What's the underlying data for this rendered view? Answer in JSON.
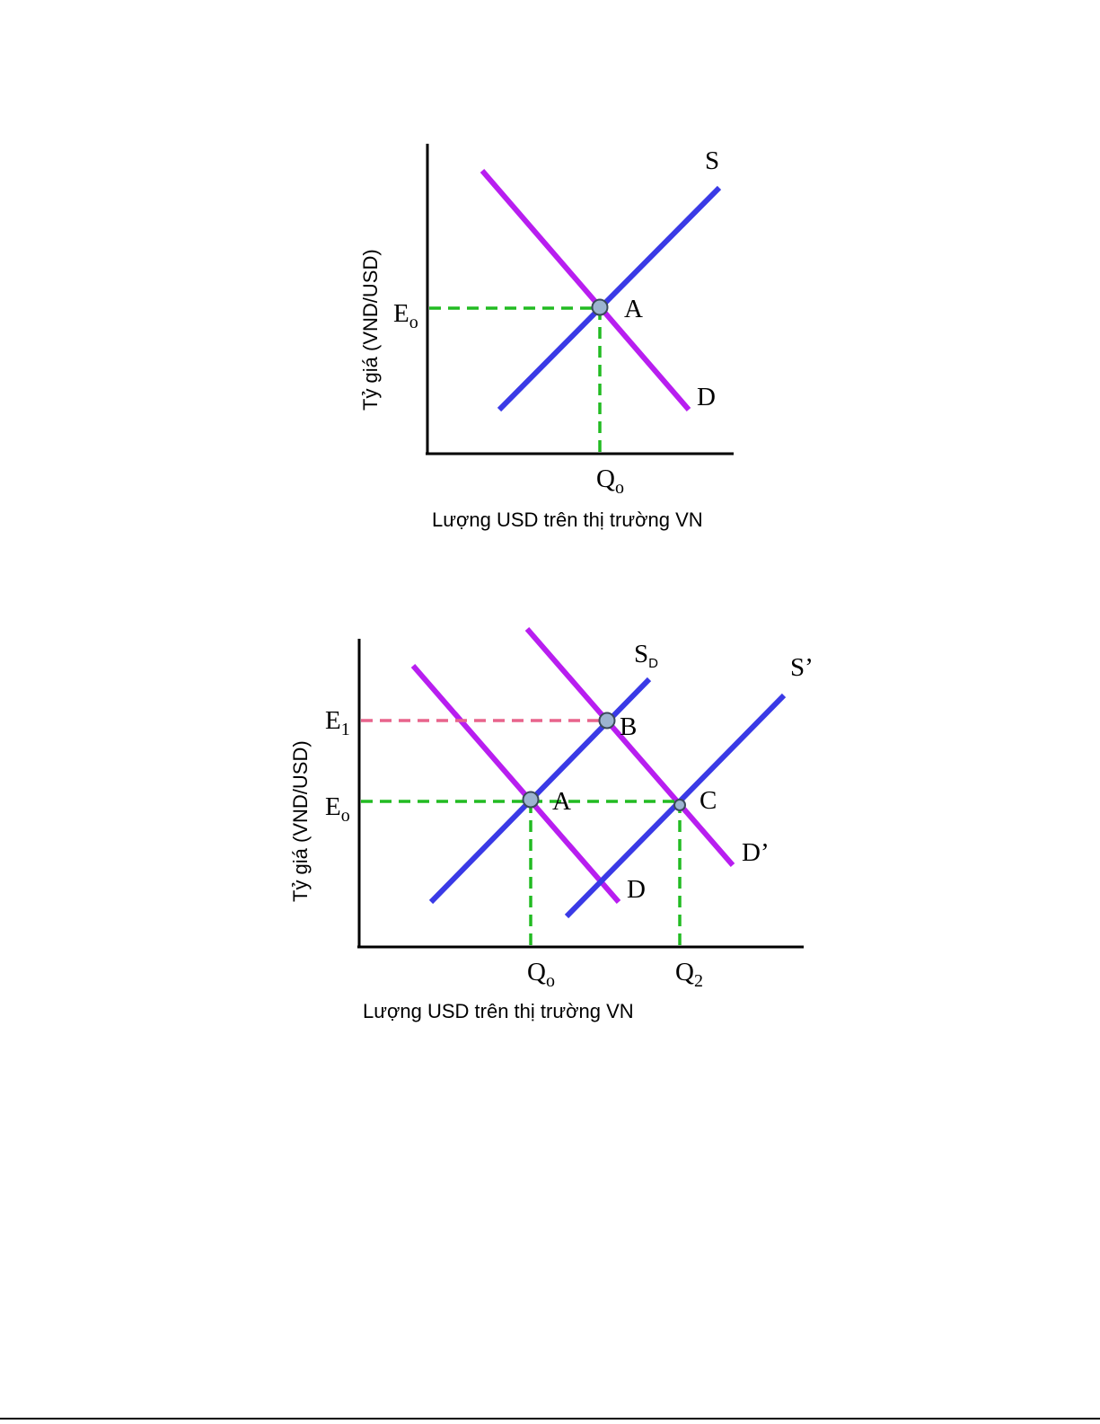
{
  "colors": {
    "supply": "#3a3ae6",
    "demand": "#b81ef0",
    "guide_green": "#22bb22",
    "guide_pink": "#e8648c",
    "point_fill": "#9cb4d0",
    "point_stroke": "#3a4a5a",
    "axis": "#000000"
  },
  "diagram1": {
    "y_axis_title": "Tỷ giá (VND/USD)",
    "x_axis_title": "Lượng USD trên thị trường VN",
    "label_S": "S",
    "label_D": "D",
    "label_A": "A",
    "label_E": "E",
    "label_E_sub": "o",
    "label_Q": "Q",
    "label_Q_sub": "o"
  },
  "diagram2": {
    "y_axis_title": "Tỷ giá (VND/USD)",
    "x_axis_title": "Lượng USD trên thị trường VN",
    "label_SD": "S",
    "label_SD_sub": "D",
    "label_S_prime": "S’",
    "label_D": "D",
    "label_D_prime": "D’",
    "label_A": "A",
    "label_B": "B",
    "label_C": "C",
    "label_E1": "E",
    "label_E1_sub": "1",
    "label_E0": "E",
    "label_E0_sub": "o",
    "label_Q0": "Q",
    "label_Q0_sub": "o",
    "label_Q2": "Q",
    "label_Q2_sub": "2"
  }
}
